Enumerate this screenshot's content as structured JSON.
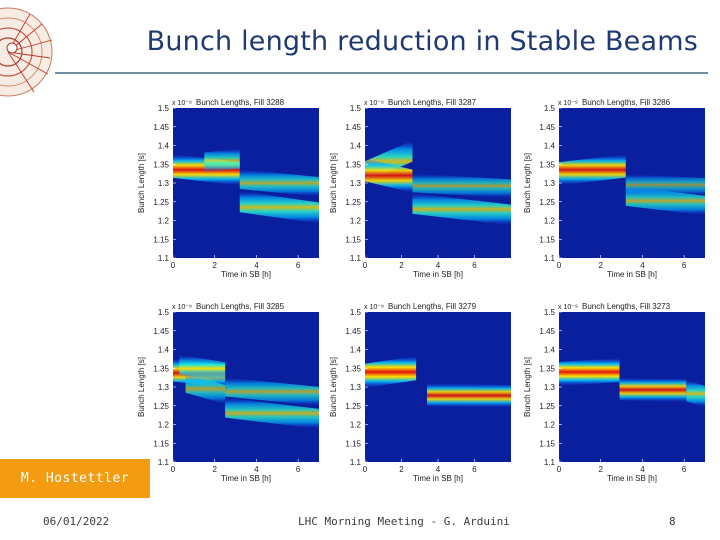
{
  "slide": {
    "title": "Bunch length reduction in Stable Beams",
    "author": "M. Hostettler",
    "date": "06/01/2022",
    "footer_center": "LHC Morning Meeting - G. Arduini",
    "page": "8"
  },
  "chart_data": [
    {
      "type": "heatmap",
      "title": "Bunch Lengths, Fill 3288",
      "scale_note": "x 10⁻⁹",
      "xlabel": "Time in SB [h]",
      "ylabel": "Bunch Length [s]",
      "ylim": [
        1.1,
        1.5
      ],
      "xlim": [
        0,
        7
      ],
      "xticks": [
        0,
        2,
        4,
        6
      ],
      "yticks": [
        1.1,
        1.15,
        1.2,
        1.25,
        1.3,
        1.35,
        1.4,
        1.45,
        1.5
      ],
      "colormap": "jet",
      "segments": [
        {
          "x": [
            0,
            3.2
          ],
          "y": [
            1.345,
            1.325
          ],
          "strength": 0.95
        },
        {
          "x": [
            1.5,
            3.2
          ],
          "y": [
            1.355,
            1.365
          ],
          "strength": 0.6
        },
        {
          "x": [
            3.2,
            7
          ],
          "y": [
            1.31,
            1.29
          ],
          "strength": 0.55
        },
        {
          "x": [
            3.2,
            7
          ],
          "y": [
            1.25,
            1.22
          ],
          "strength": 0.7
        }
      ]
    },
    {
      "type": "heatmap",
      "title": "Bunch Lengths, Fill 3287",
      "scale_note": "x 10⁻⁹",
      "xlabel": "Time in SB [h]",
      "ylabel": "Bunch Length [s]",
      "ylim": [
        1.1,
        1.5
      ],
      "xlim": [
        0,
        8
      ],
      "xticks": [
        0,
        2,
        4,
        6
      ],
      "yticks": [
        1.1,
        1.15,
        1.2,
        1.25,
        1.3,
        1.35,
        1.4,
        1.45,
        1.5
      ],
      "colormap": "jet",
      "segments": [
        {
          "x": [
            0,
            2.6
          ],
          "y": [
            1.33,
            1.385
          ],
          "strength": 0.7
        },
        {
          "x": [
            0,
            2.6
          ],
          "y": [
            1.335,
            1.305
          ],
          "strength": 0.9
        },
        {
          "x": [
            2.6,
            8
          ],
          "y": [
            1.3,
            1.285
          ],
          "strength": 0.45
        },
        {
          "x": [
            2.6,
            8
          ],
          "y": [
            1.245,
            1.215
          ],
          "strength": 0.65
        }
      ]
    },
    {
      "type": "heatmap",
      "title": "Bunch Lengths, Fill 3286",
      "scale_note": "x 10⁻⁹",
      "xlabel": "Time in SB [h]",
      "ylabel": "Bunch Length [s]",
      "ylim": [
        1.1,
        1.5
      ],
      "xlim": [
        0,
        7
      ],
      "xticks": [
        0,
        2,
        4,
        6
      ],
      "yticks": [
        1.1,
        1.15,
        1.2,
        1.25,
        1.3,
        1.35,
        1.4,
        1.45,
        1.5
      ],
      "colormap": "jet",
      "segments": [
        {
          "x": [
            0,
            3.2
          ],
          "y": [
            1.325,
            1.345
          ],
          "strength": 0.9
        },
        {
          "x": [
            3.2,
            7
          ],
          "y": [
            1.3,
            1.29
          ],
          "strength": 0.35
        },
        {
          "x": [
            3.2,
            7
          ],
          "y": [
            1.265,
            1.24
          ],
          "strength": 0.55
        }
      ]
    },
    {
      "type": "heatmap",
      "title": "Bunch Lengths, Fill 3285",
      "scale_note": "x 10⁻⁹",
      "xlabel": "Time in SB [h]",
      "ylabel": "Bunch Length [s]",
      "ylim": [
        1.1,
        1.5
      ],
      "xlim": [
        0,
        7
      ],
      "xticks": [
        0,
        2,
        4,
        6
      ],
      "yticks": [
        1.1,
        1.15,
        1.2,
        1.25,
        1.3,
        1.35,
        1.4,
        1.45,
        1.5
      ],
      "colormap": "jet",
      "segments": [
        {
          "x": [
            0,
            2.5
          ],
          "y": [
            1.345,
            1.33
          ],
          "strength": 0.9
        },
        {
          "x": [
            0.3,
            2.5
          ],
          "y": [
            1.36,
            1.34
          ],
          "strength": 0.55
        },
        {
          "x": [
            0.6,
            2.5
          ],
          "y": [
            1.31,
            1.28
          ],
          "strength": 0.5
        },
        {
          "x": [
            2.5,
            7
          ],
          "y": [
            1.3,
            1.275
          ],
          "strength": 0.5
        },
        {
          "x": [
            2.5,
            7
          ],
          "y": [
            1.245,
            1.215
          ],
          "strength": 0.6
        }
      ]
    },
    {
      "type": "heatmap",
      "title": "Bunch Lengths, Fill 3279",
      "scale_note": "x 10⁻⁹",
      "xlabel": "Time in SB [h]",
      "ylabel": "Bunch Length [s]",
      "ylim": [
        1.1,
        1.5
      ],
      "xlim": [
        0,
        8
      ],
      "xticks": [
        0,
        2,
        4,
        6
      ],
      "yticks": [
        1.1,
        1.15,
        1.2,
        1.25,
        1.3,
        1.35,
        1.4,
        1.45,
        1.5
      ],
      "colormap": "jet",
      "segments": [
        {
          "x": [
            0,
            2.8
          ],
          "y": [
            1.33,
            1.35
          ],
          "strength": 1.0
        },
        {
          "x": [
            3.4,
            8
          ],
          "y": [
            1.28,
            1.275
          ],
          "strength": 0.85
        }
      ]
    },
    {
      "type": "heatmap",
      "title": "Bunch Lengths, Fill 3273",
      "scale_note": "x 10⁻⁹",
      "xlabel": "Time in SB [h]",
      "ylabel": "Bunch Length [s]",
      "ylim": [
        1.1,
        1.5
      ],
      "xlim": [
        0,
        7
      ],
      "xticks": [
        0,
        2,
        4,
        6
      ],
      "yticks": [
        1.1,
        1.15,
        1.2,
        1.25,
        1.3,
        1.35,
        1.4,
        1.45,
        1.5
      ],
      "colormap": "jet",
      "segments": [
        {
          "x": [
            0,
            2.9
          ],
          "y": [
            1.335,
            1.345
          ],
          "strength": 1.0
        },
        {
          "x": [
            2.9,
            6.1
          ],
          "y": [
            1.295,
            1.29
          ],
          "strength": 0.85
        },
        {
          "x": [
            6.1,
            7
          ],
          "y": [
            1.29,
            1.275
          ],
          "strength": 0.7
        }
      ]
    }
  ]
}
